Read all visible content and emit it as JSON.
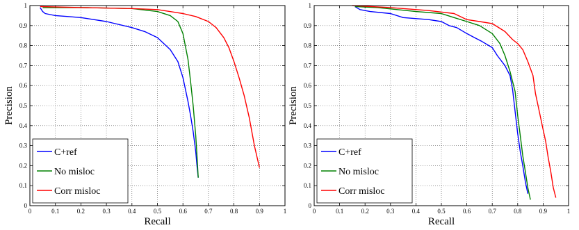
{
  "colors": {
    "c_ref": "#0000ff",
    "no_misloc": "#008000",
    "corr_misloc": "#ff0000",
    "grid": "#555555",
    "axis": "#000000"
  },
  "chart_data": [
    {
      "type": "line",
      "xlabel": "Recall",
      "ylabel": "Precision",
      "xlim": [
        0,
        1
      ],
      "ylim": [
        0,
        1
      ],
      "grid": true,
      "legend_position": "bottom-left",
      "xticks": [
        "0",
        "0.1",
        "0.2",
        "0.3",
        "0.4",
        "0.5",
        "0.6",
        "0.7",
        "0.8",
        "0.9",
        "1"
      ],
      "yticks": [
        "0",
        "0.1",
        "0.2",
        "0.3",
        "0.4",
        "0.5",
        "0.6",
        "0.7",
        "0.8",
        "0.9",
        "1"
      ],
      "series": [
        {
          "name": "C+ref",
          "color": "#0000ff",
          "x": [
            0.04,
            0.05,
            0.06,
            0.08,
            0.1,
            0.15,
            0.2,
            0.3,
            0.4,
            0.45,
            0.5,
            0.55,
            0.58,
            0.6,
            0.62,
            0.63,
            0.64,
            0.65,
            0.655,
            0.66
          ],
          "y": [
            0.99,
            0.97,
            0.96,
            0.955,
            0.95,
            0.945,
            0.94,
            0.92,
            0.89,
            0.87,
            0.84,
            0.78,
            0.72,
            0.64,
            0.52,
            0.45,
            0.37,
            0.27,
            0.2,
            0.14
          ]
        },
        {
          "name": "No misloc",
          "color": "#008000",
          "x": [
            0.05,
            0.2,
            0.4,
            0.5,
            0.55,
            0.58,
            0.6,
            0.62,
            0.63,
            0.64,
            0.65,
            0.655,
            0.66
          ],
          "y": [
            0.99,
            0.99,
            0.985,
            0.97,
            0.95,
            0.92,
            0.86,
            0.73,
            0.62,
            0.5,
            0.35,
            0.25,
            0.14
          ]
        },
        {
          "name": "Corr misloc",
          "color": "#ff0000",
          "x": [
            0.04,
            0.2,
            0.4,
            0.5,
            0.6,
            0.65,
            0.7,
            0.73,
            0.76,
            0.78,
            0.8,
            0.82,
            0.84,
            0.86,
            0.88,
            0.9
          ],
          "y": [
            0.995,
            0.99,
            0.985,
            0.98,
            0.96,
            0.945,
            0.92,
            0.89,
            0.84,
            0.79,
            0.72,
            0.64,
            0.55,
            0.44,
            0.3,
            0.19
          ]
        }
      ]
    },
    {
      "type": "line",
      "xlabel": "Recall",
      "ylabel": "Precision",
      "xlim": [
        0,
        1
      ],
      "ylim": [
        0,
        1
      ],
      "grid": true,
      "legend_position": "bottom-left",
      "xticks": [
        "0",
        "0.1",
        "0.2",
        "0.3",
        "0.4",
        "0.5",
        "0.6",
        "0.7",
        "0.8",
        "0.9",
        "1"
      ],
      "yticks": [
        "0",
        "0.1",
        "0.2",
        "0.3",
        "0.4",
        "0.5",
        "0.6",
        "0.7",
        "0.8",
        "0.9",
        "1"
      ],
      "series": [
        {
          "name": "C+ref",
          "color": "#0000ff",
          "x": [
            0.16,
            0.18,
            0.22,
            0.3,
            0.35,
            0.45,
            0.5,
            0.53,
            0.56,
            0.6,
            0.63,
            0.66,
            0.7,
            0.72,
            0.75,
            0.77,
            0.78,
            0.79,
            0.8,
            0.81,
            0.82,
            0.83,
            0.84
          ],
          "y": [
            0.995,
            0.98,
            0.97,
            0.96,
            0.94,
            0.93,
            0.92,
            0.9,
            0.89,
            0.86,
            0.84,
            0.82,
            0.79,
            0.75,
            0.7,
            0.65,
            0.58,
            0.47,
            0.36,
            0.27,
            0.2,
            0.12,
            0.06
          ]
        },
        {
          "name": "No misloc",
          "color": "#008000",
          "x": [
            0.16,
            0.25,
            0.4,
            0.5,
            0.55,
            0.6,
            0.65,
            0.7,
            0.73,
            0.75,
            0.77,
            0.79,
            0.8,
            0.81,
            0.82,
            0.83,
            0.84,
            0.85
          ],
          "y": [
            0.995,
            0.99,
            0.97,
            0.96,
            0.94,
            0.92,
            0.9,
            0.86,
            0.81,
            0.75,
            0.67,
            0.57,
            0.45,
            0.35,
            0.25,
            0.17,
            0.09,
            0.03
          ]
        },
        {
          "name": "Corr misloc",
          "color": "#ff0000",
          "x": [
            0.15,
            0.3,
            0.45,
            0.55,
            0.6,
            0.65,
            0.7,
            0.75,
            0.78,
            0.8,
            0.82,
            0.84,
            0.86,
            0.87,
            0.88,
            0.9,
            0.91,
            0.92,
            0.93,
            0.94,
            0.95
          ],
          "y": [
            1.0,
            0.99,
            0.975,
            0.96,
            0.93,
            0.92,
            0.91,
            0.87,
            0.83,
            0.81,
            0.78,
            0.72,
            0.65,
            0.56,
            0.5,
            0.38,
            0.32,
            0.24,
            0.17,
            0.09,
            0.04
          ]
        }
      ]
    }
  ]
}
